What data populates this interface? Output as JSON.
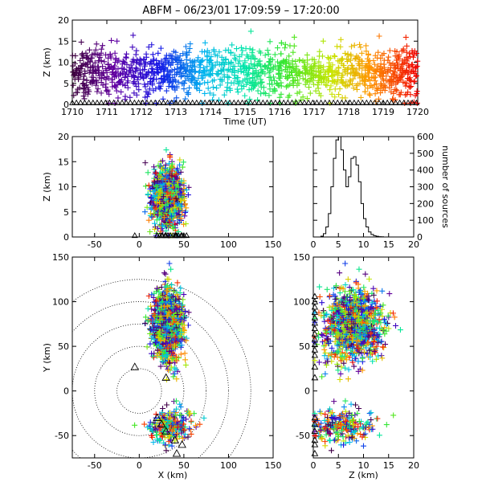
{
  "title": "ABFM – 06/23/01 17:09:59 – 17:20:00",
  "chart_data": [
    {
      "name": "time-height",
      "type": "scatter",
      "xlabel": "Time (UT)",
      "ylabel": "Z (km)",
      "xlim": [
        1710,
        1720
      ],
      "ylim": [
        0,
        20
      ],
      "x_ticks": [
        "1710",
        "1711",
        "1712",
        "1713",
        "1714",
        "1715",
        "1716",
        "1717",
        "1718",
        "1719",
        "1720"
      ],
      "y_ticks": [
        0,
        5,
        10,
        15,
        20
      ],
      "color_scale": "time"
    },
    {
      "name": "x-z",
      "type": "scatter",
      "xlabel": "",
      "ylabel": "Z (km)",
      "xlim": [
        -75,
        150
      ],
      "ylim": [
        0,
        20
      ],
      "x_ticks": [
        -50,
        0,
        50,
        100,
        150
      ],
      "y_ticks": [
        0,
        5,
        10,
        15,
        20
      ]
    },
    {
      "name": "histogram",
      "type": "bar",
      "xlabel": "",
      "ylabel": "number of sources",
      "xlim": [
        0,
        20
      ],
      "ylim": [
        0,
        600
      ],
      "x_ticks": [
        0,
        5,
        10,
        15,
        20
      ],
      "y_ticks": [
        0,
        100,
        200,
        300,
        400,
        500,
        600
      ],
      "bins": [
        0,
        0.5,
        1,
        1.5,
        2,
        2.5,
        3,
        3.5,
        4,
        4.5,
        5,
        5.5,
        6,
        6.5,
        7,
        7.5,
        8,
        8.5,
        9,
        9.5,
        10,
        10.5,
        11,
        11.5,
        12,
        12.5,
        13,
        13.5,
        14,
        14.5,
        15,
        15.5,
        16
      ],
      "counts": [
        0,
        0,
        0,
        5,
        20,
        60,
        140,
        300,
        470,
        580,
        600,
        520,
        400,
        300,
        360,
        470,
        480,
        430,
        330,
        200,
        110,
        60,
        30,
        15,
        8,
        4,
        2,
        1,
        0,
        0,
        0,
        0
      ]
    },
    {
      "name": "plan-view",
      "type": "scatter",
      "xlabel": "X (km)",
      "ylabel": "Y (km)",
      "xlim": [
        -75,
        150
      ],
      "ylim": [
        -75,
        150
      ],
      "x_ticks": [
        -50,
        0,
        50,
        100,
        150
      ],
      "y_ticks": [
        -50,
        0,
        50,
        100,
        150
      ],
      "range_rings_km": [
        25,
        50,
        75,
        100,
        125
      ]
    },
    {
      "name": "z-y",
      "type": "scatter",
      "xlabel": "Z (km)",
      "ylabel": "",
      "xlim": [
        0,
        20
      ],
      "ylim": [
        -75,
        150
      ],
      "x_ticks": [
        0,
        5,
        10,
        15,
        20
      ],
      "y_ticks": [
        -50,
        0,
        50,
        100,
        150
      ]
    }
  ],
  "stations": [
    {
      "x": -5,
      "y": 27
    },
    {
      "x": 20,
      "y": -30
    },
    {
      "x": 25,
      "y": -37
    },
    {
      "x": 30,
      "y": -45
    },
    {
      "x": 40,
      "y": -55
    },
    {
      "x": 48,
      "y": -60
    },
    {
      "x": 42,
      "y": -70
    },
    {
      "x": 30,
      "y": 15
    }
  ]
}
